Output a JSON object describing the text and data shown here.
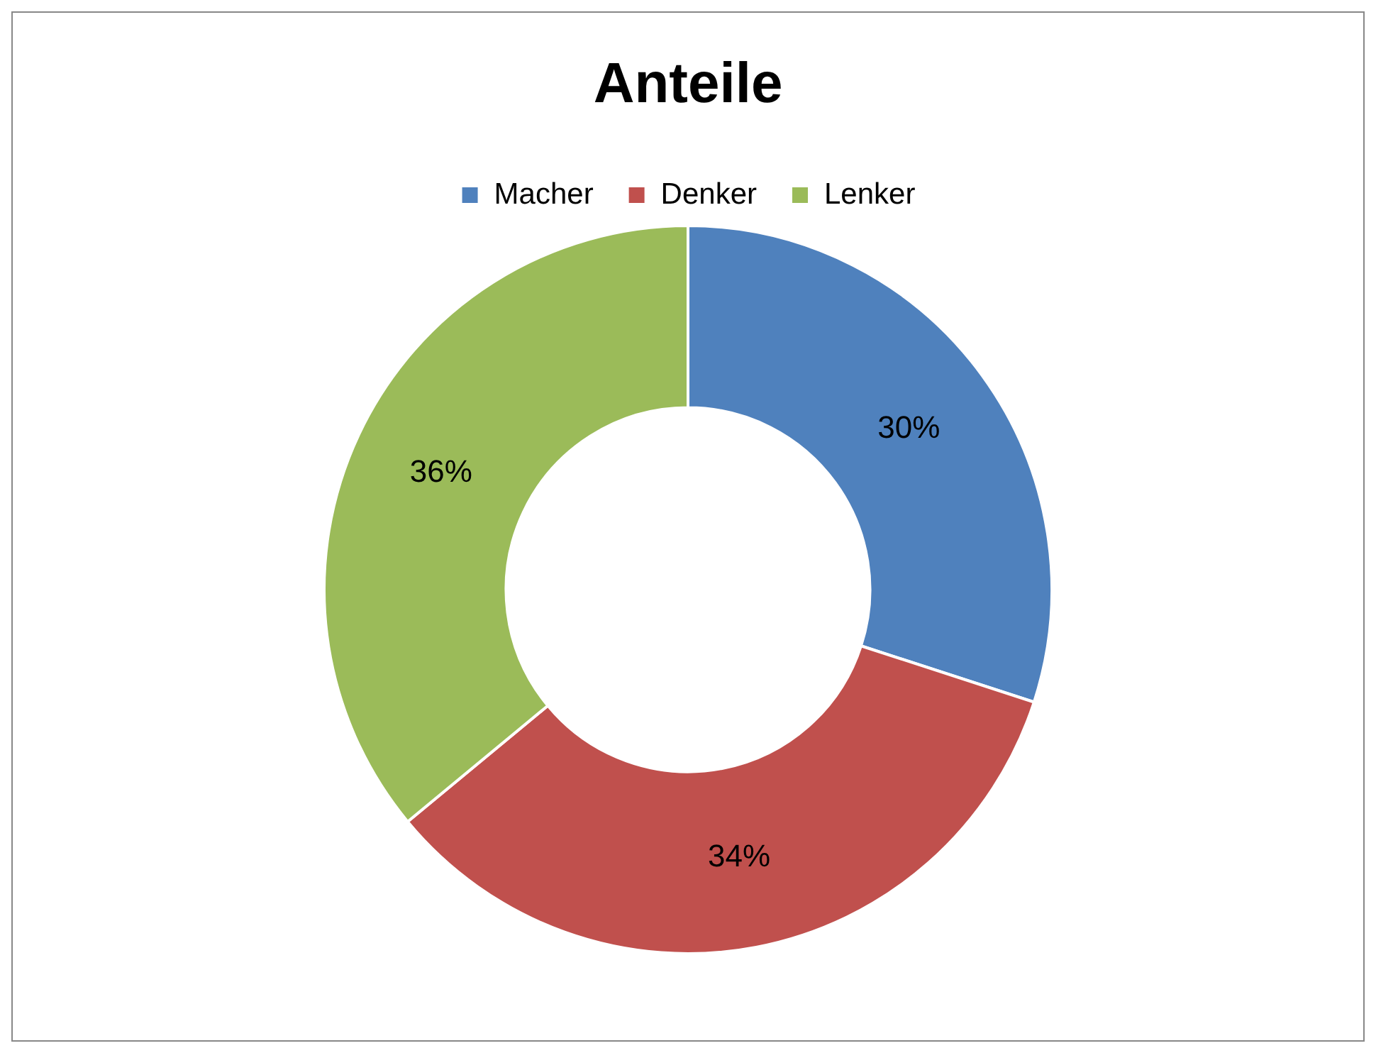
{
  "chart_data": {
    "type": "donut",
    "title": "Anteile",
    "legend": "top",
    "categories": [
      "Macher",
      "Denker",
      "Lenker"
    ],
    "values": [
      30,
      34,
      36
    ],
    "colors": [
      "#4f81bd",
      "#c0504d",
      "#9bbb59"
    ],
    "value_labels": [
      "30%",
      "34%",
      "36%"
    ]
  }
}
